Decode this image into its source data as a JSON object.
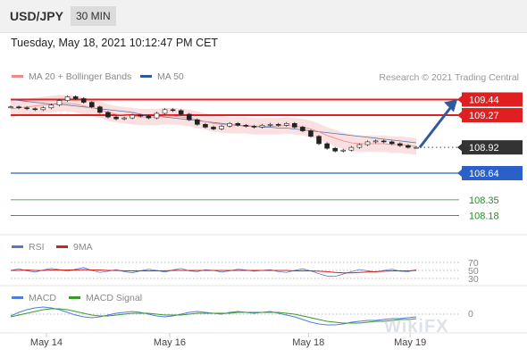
{
  "header": {
    "pair": "USD/JPY",
    "timeframe": "30 MIN"
  },
  "timestamp": "Tuesday, May 18, 2021 10:12:47 PM CET",
  "legend_main": [
    {
      "label": "MA 20 + Bollinger Bands",
      "color": "#f08a8a"
    },
    {
      "label": "MA 50",
      "color": "#2f5b9c"
    }
  ],
  "credit": "Research © 2021 Trading Central",
  "watermark": "WikiFX",
  "chart_data": {
    "type": "candlestick",
    "instrument": "USD/JPY",
    "timeframe": "30 MIN",
    "x_ticks": [
      "May 14",
      "May 16",
      "May 18",
      "May 19"
    ],
    "price_ylim": [
      108.0,
      109.6
    ],
    "levels": [
      {
        "value": 109.44,
        "label": "109.44",
        "kind": "resistance",
        "color": "#e02020"
      },
      {
        "value": 109.27,
        "label": "109.27",
        "kind": "resistance",
        "color": "#e02020"
      },
      {
        "value": 108.92,
        "label": "108.92",
        "kind": "last",
        "color": "#333333"
      },
      {
        "value": 108.64,
        "label": "108.64",
        "kind": "pivot",
        "color": "#2a60c8"
      },
      {
        "value": 108.35,
        "label": "108.35",
        "kind": "support",
        "color": "#2a8a2a"
      },
      {
        "value": 108.18,
        "label": "108.18",
        "kind": "support",
        "color": "#2a8a2a"
      }
    ],
    "close_series": [
      109.36,
      109.35,
      109.34,
      109.33,
      109.35,
      109.38,
      109.43,
      109.47,
      109.45,
      109.41,
      109.36,
      109.3,
      109.25,
      109.23,
      109.24,
      109.27,
      109.26,
      109.24,
      109.29,
      109.33,
      109.32,
      109.28,
      109.22,
      109.17,
      109.14,
      109.12,
      109.15,
      109.18,
      109.16,
      109.15,
      109.14,
      109.16,
      109.17,
      109.16,
      109.18,
      109.14,
      109.1,
      109.04,
      108.96,
      108.91,
      108.88,
      108.89,
      108.92,
      108.95,
      108.98,
      108.99,
      108.98,
      108.96,
      108.94,
      108.92,
      108.92
    ],
    "ma20": [
      109.34,
      109.35,
      109.36,
      109.37,
      109.38,
      109.39,
      109.4,
      109.4,
      109.39,
      109.37,
      109.35,
      109.33,
      109.3,
      109.28,
      109.27,
      109.26,
      109.25,
      109.25,
      109.25,
      109.26,
      109.26,
      109.25,
      109.24,
      109.22,
      109.2,
      109.18,
      109.17,
      109.16,
      109.16,
      109.16,
      109.15,
      109.15,
      109.15,
      109.15,
      109.16,
      109.15,
      109.14,
      109.12,
      109.09,
      109.05,
      109.02,
      108.99,
      108.97,
      108.96,
      108.96,
      108.96,
      108.96,
      108.95,
      108.95,
      108.94,
      108.93
    ],
    "bb_width": 0.09,
    "ma50": [
      109.44,
      109.43,
      109.42,
      109.41,
      109.4,
      109.39,
      109.39,
      109.38,
      109.37,
      109.36,
      109.35,
      109.34,
      109.33,
      109.32,
      109.31,
      109.3,
      109.28,
      109.27,
      109.26,
      109.25,
      109.24,
      109.23,
      109.22,
      109.21,
      109.2,
      109.19,
      109.18,
      109.17,
      109.16,
      109.15,
      109.15,
      109.14,
      109.14,
      109.13,
      109.13,
      109.12,
      109.11,
      109.1,
      109.09,
      109.08,
      109.07,
      109.06,
      109.05,
      109.04,
      109.03,
      109.02,
      109.01,
      109.0,
      108.99,
      108.98,
      108.97
    ],
    "forecast_arrow": {
      "from": 108.92,
      "to": 109.44
    },
    "rsi": {
      "legend": [
        {
          "label": "RSI",
          "color": "#5577cc"
        },
        {
          "label": "9MA",
          "color": "#cc2222"
        }
      ],
      "levels": [
        70,
        50,
        30
      ],
      "level_labels": [
        "70",
        "50",
        "30"
      ],
      "ylim": [
        0,
        100
      ],
      "rsi": [
        50,
        54,
        49,
        46,
        51,
        55,
        52,
        48,
        53,
        57,
        50,
        45,
        48,
        52,
        47,
        44,
        49,
        53,
        50,
        46,
        51,
        55,
        49,
        47,
        52,
        50,
        46,
        49,
        53,
        51,
        48,
        50,
        52,
        47,
        45,
        50,
        54,
        49,
        42,
        36,
        35,
        41,
        47,
        52,
        49,
        46,
        50,
        53,
        48,
        47,
        52
      ],
      "ma9": [
        50,
        50,
        51,
        50,
        50,
        51,
        51,
        51,
        51,
        52,
        51,
        51,
        50,
        50,
        49,
        49,
        49,
        49,
        49,
        49,
        50,
        50,
        50,
        50,
        50,
        50,
        50,
        50,
        50,
        50,
        50,
        50,
        50,
        50,
        50,
        49,
        49,
        49,
        48,
        47,
        45,
        44,
        44,
        45,
        46,
        47,
        48,
        49,
        49,
        49,
        50
      ]
    },
    "macd": {
      "legend": [
        {
          "label": "MACD",
          "color": "#4f7de0"
        },
        {
          "label": "MACD Signal",
          "color": "#3a9a2a"
        }
      ],
      "zero_label": "0",
      "ylim": [
        -0.16,
        0.12
      ],
      "macd": [
        -0.02,
        0.02,
        0.05,
        0.07,
        0.08,
        0.07,
        0.05,
        0.02,
        -0.01,
        -0.03,
        -0.04,
        -0.03,
        -0.01,
        0.01,
        0.02,
        0.03,
        0.02,
        0.0,
        -0.02,
        -0.03,
        -0.02,
        0.0,
        0.02,
        0.03,
        0.02,
        0.01,
        0.0,
        0.02,
        0.03,
        0.02,
        0.01,
        0.02,
        0.03,
        0.01,
        -0.01,
        -0.03,
        -0.06,
        -0.09,
        -0.11,
        -0.12,
        -0.12,
        -0.11,
        -0.09,
        -0.08,
        -0.07,
        -0.07,
        -0.06,
        -0.05,
        -0.05,
        -0.04,
        -0.03
      ],
      "signal": [
        -0.03,
        -0.01,
        0.01,
        0.03,
        0.05,
        0.06,
        0.06,
        0.05,
        0.03,
        0.01,
        -0.01,
        -0.02,
        -0.02,
        -0.01,
        0.0,
        0.01,
        0.01,
        0.01,
        0.0,
        -0.01,
        -0.01,
        -0.01,
        0.0,
        0.01,
        0.01,
        0.01,
        0.01,
        0.01,
        0.02,
        0.02,
        0.02,
        0.02,
        0.02,
        0.02,
        0.01,
        0.0,
        -0.02,
        -0.04,
        -0.06,
        -0.08,
        -0.09,
        -0.1,
        -0.1,
        -0.1,
        -0.09,
        -0.08,
        -0.08,
        -0.07,
        -0.06,
        -0.06,
        -0.05
      ]
    }
  }
}
